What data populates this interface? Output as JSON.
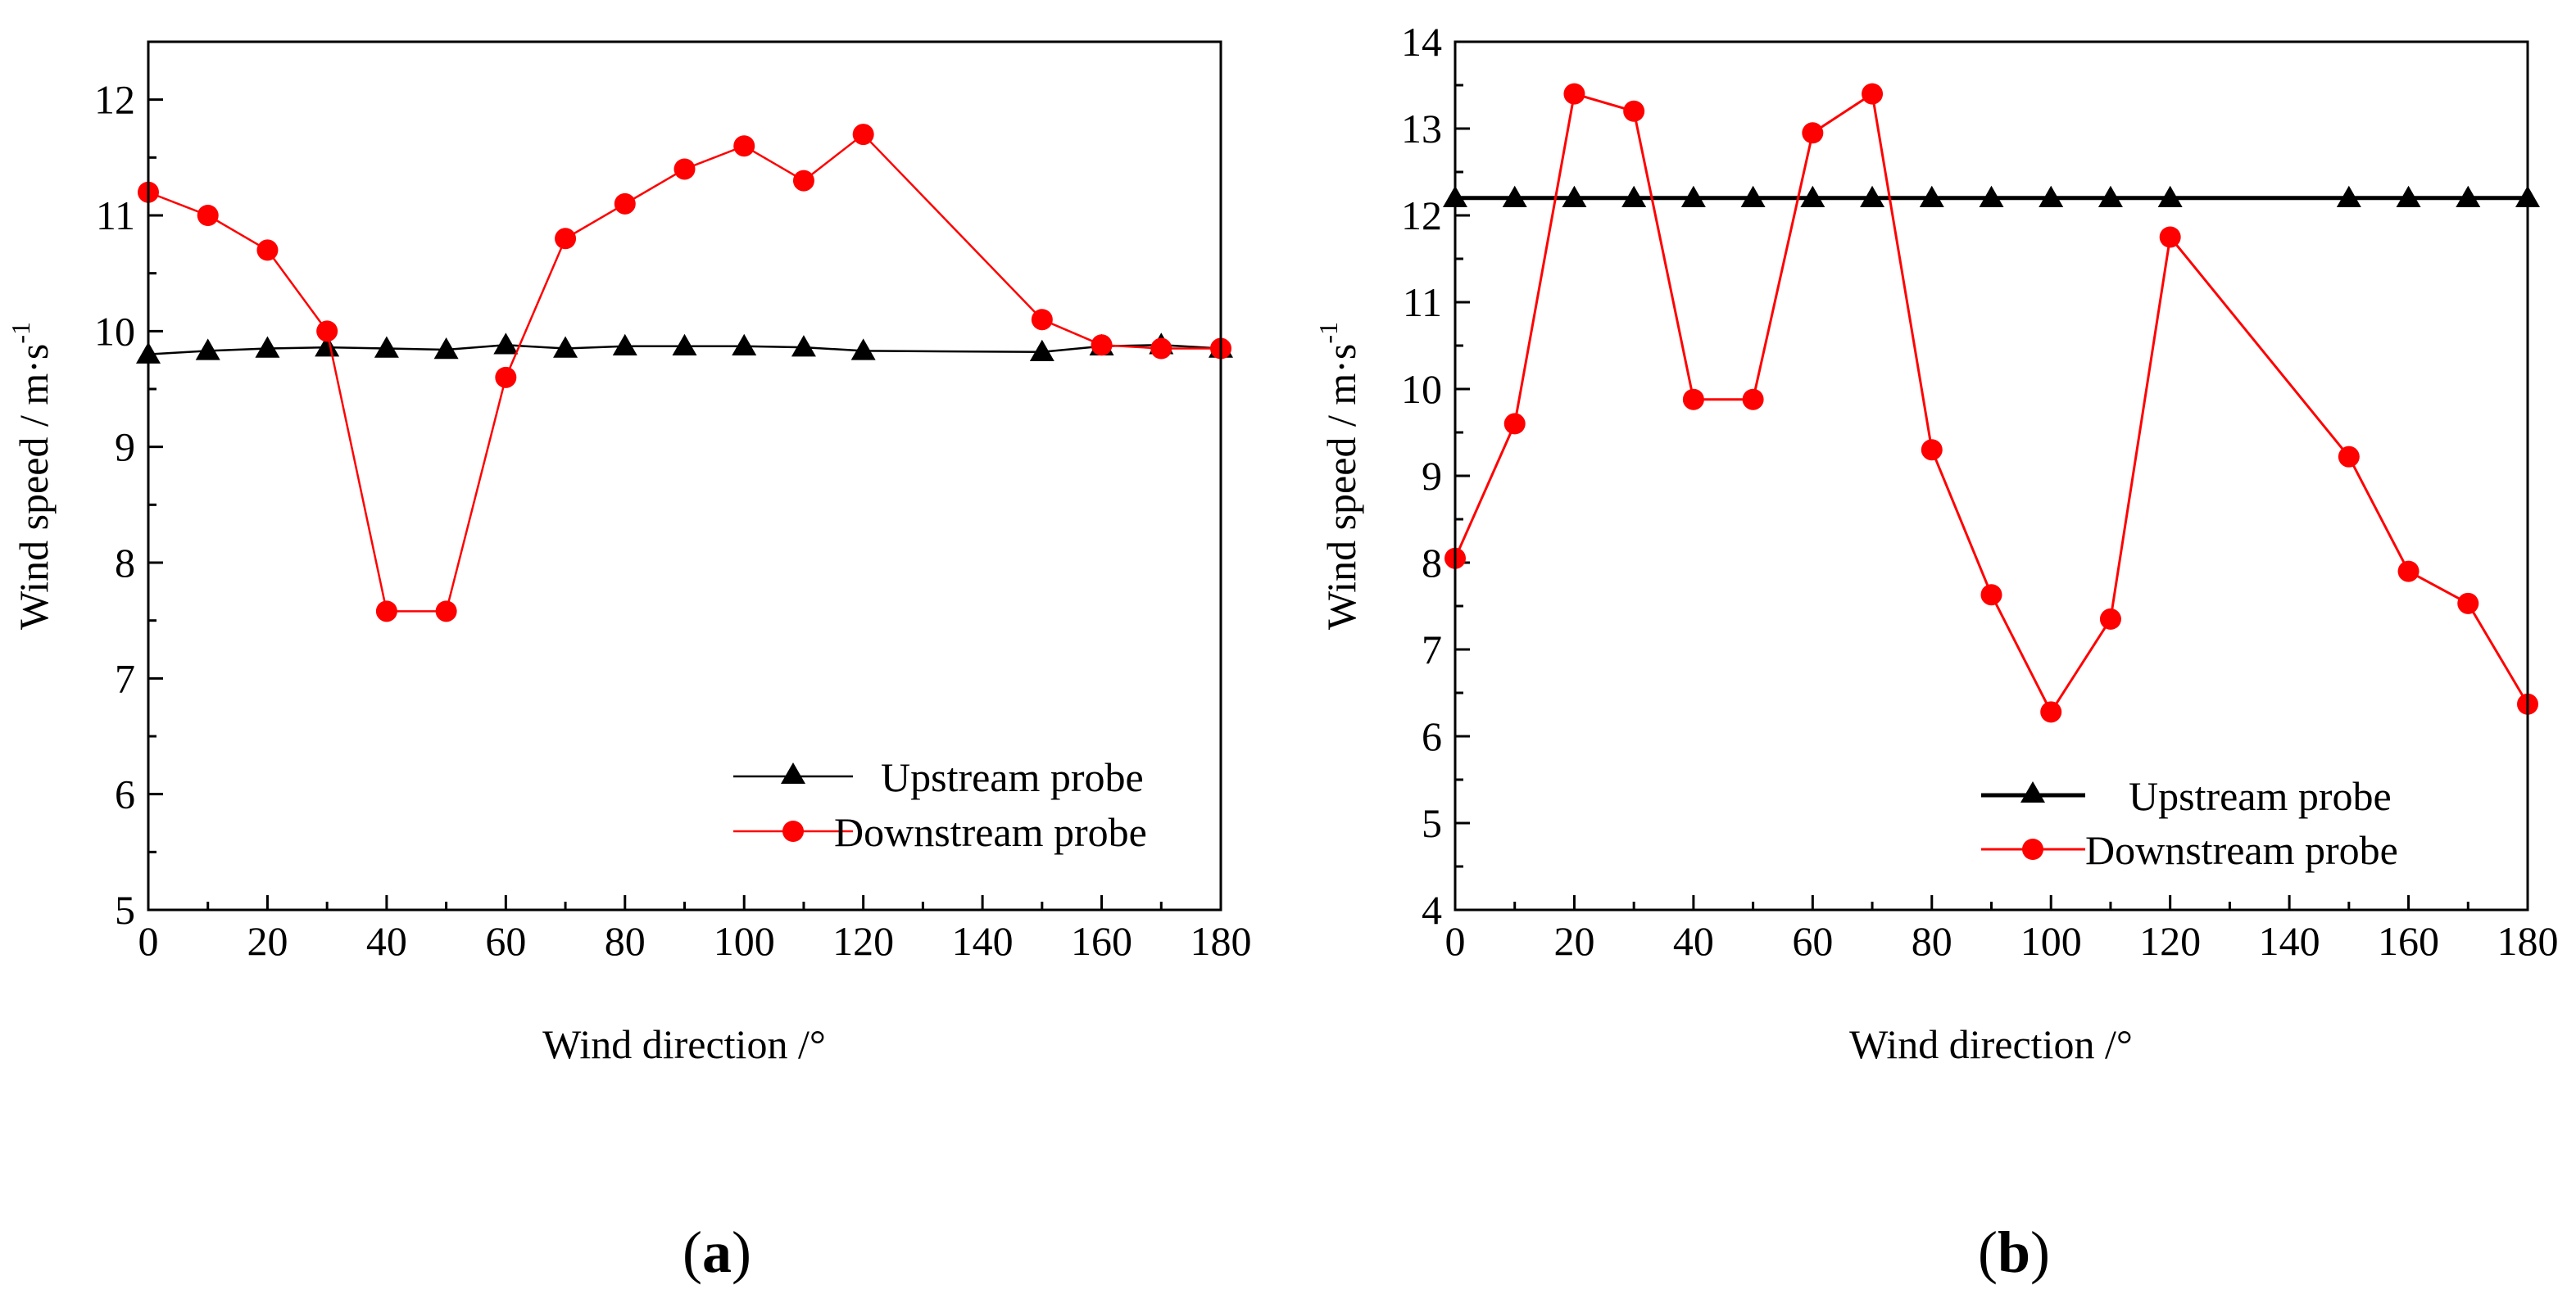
{
  "chart_data": [
    {
      "type": "line",
      "panel_label": "a",
      "xlabel": "Wind direction /°",
      "ylabel_main": "Wind speed / m·s",
      "ylabel_sup": "-1",
      "xlim": [
        0,
        180
      ],
      "ylim": [
        5,
        12.5
      ],
      "xticks": [
        0,
        20,
        40,
        60,
        80,
        100,
        120,
        140,
        160,
        180
      ],
      "yticks": [
        5,
        6,
        7,
        8,
        9,
        10,
        11,
        12
      ],
      "legend_position": "bottom-right",
      "series": [
        {
          "name": "Upstream probe",
          "color": "#000000",
          "marker": "triangle",
          "x": [
            0,
            10,
            20,
            30,
            40,
            50,
            60,
            70,
            80,
            90,
            100,
            110,
            120,
            150,
            160,
            170,
            180
          ],
          "values": [
            9.8,
            9.83,
            9.85,
            9.86,
            9.85,
            9.84,
            9.88,
            9.85,
            9.87,
            9.87,
            9.87,
            9.86,
            9.83,
            9.82,
            9.87,
            9.88,
            9.85
          ]
        },
        {
          "name": "Downstream probe",
          "color": "#ff0000",
          "marker": "circle",
          "x": [
            0,
            10,
            20,
            30,
            40,
            50,
            60,
            70,
            80,
            90,
            100,
            110,
            120,
            150,
            160,
            170,
            180
          ],
          "values": [
            11.2,
            11.0,
            10.7,
            10.0,
            7.58,
            7.58,
            9.6,
            10.8,
            11.1,
            11.4,
            11.6,
            11.3,
            11.7,
            10.1,
            9.88,
            9.85,
            9.85
          ]
        }
      ]
    },
    {
      "type": "line",
      "panel_label": "b",
      "xlabel": "Wind direction /°",
      "ylabel_main": "Wind speed / m·s",
      "ylabel_sup": "-1",
      "xlim": [
        0,
        180
      ],
      "ylim": [
        4,
        14
      ],
      "xticks": [
        0,
        20,
        40,
        60,
        80,
        100,
        120,
        140,
        160,
        180
      ],
      "yticks": [
        4,
        5,
        6,
        7,
        8,
        9,
        10,
        11,
        12,
        13,
        14
      ],
      "legend_position": "bottom-right",
      "series": [
        {
          "name": "Upstream probe",
          "color": "#000000",
          "marker": "triangle",
          "x": [
            0,
            10,
            20,
            30,
            40,
            50,
            60,
            70,
            80,
            90,
            100,
            110,
            120,
            150,
            160,
            170,
            180
          ],
          "values": [
            12.2,
            12.2,
            12.2,
            12.2,
            12.2,
            12.2,
            12.2,
            12.2,
            12.2,
            12.2,
            12.2,
            12.2,
            12.2,
            12.2,
            12.2,
            12.2,
            12.2
          ]
        },
        {
          "name": "Downstream probe",
          "color": "#ff0000",
          "marker": "circle",
          "x": [
            0,
            10,
            20,
            30,
            40,
            50,
            60,
            70,
            80,
            90,
            100,
            110,
            120,
            150,
            160,
            170,
            180
          ],
          "values": [
            8.05,
            9.6,
            13.4,
            13.2,
            9.88,
            9.88,
            12.95,
            13.4,
            9.3,
            7.63,
            6.28,
            7.35,
            11.75,
            9.22,
            7.9,
            7.53,
            6.37
          ]
        }
      ]
    }
  ]
}
